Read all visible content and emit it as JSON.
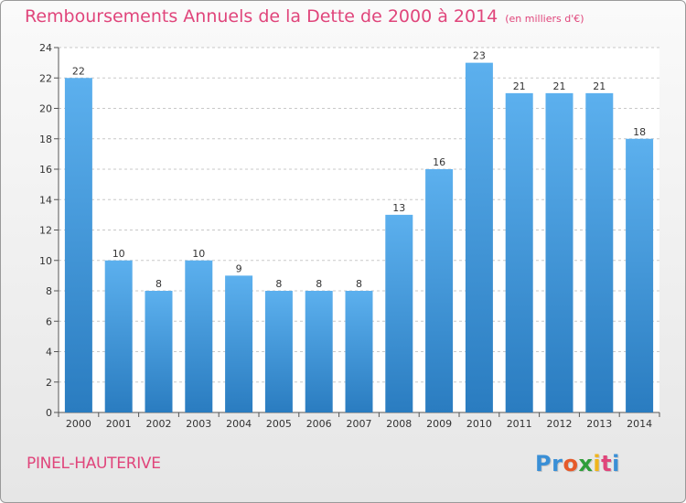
{
  "title": "Remboursements Annuels de la Dette de 2000 à 2014",
  "unit_note": "(en milliers d'€)",
  "commune": "PINEL-HAUTERIVE",
  "logo": {
    "letters": [
      "P",
      "r",
      "o",
      "x",
      "i",
      "t",
      "i"
    ],
    "colors": [
      "#3a8fd6",
      "#3a8fd6",
      "#e65a2a",
      "#2f9e3a",
      "#f0b41c",
      "#e0457b",
      "#3a8fd6"
    ]
  },
  "colors": {
    "bar_light": "#5cb0ee",
    "bar_dark": "#2a7cc0",
    "title": "#e0457b",
    "grid": "#c8c8c8"
  },
  "chart_data": {
    "type": "bar",
    "title": "Remboursements Annuels de la Dette de 2000 à 2014",
    "ylabel": "",
    "xlabel": "",
    "ylim": [
      0,
      24
    ],
    "yticks": [
      0,
      2,
      4,
      6,
      8,
      10,
      12,
      14,
      16,
      18,
      20,
      22,
      24
    ],
    "grid": true,
    "categories": [
      "2000",
      "2001",
      "2002",
      "2003",
      "2004",
      "2005",
      "2006",
      "2007",
      "2008",
      "2009",
      "2010",
      "2011",
      "2012",
      "2013",
      "2014"
    ],
    "values": [
      22,
      10,
      8,
      10,
      9,
      8,
      8,
      8,
      13,
      16,
      23,
      21,
      21,
      21,
      18
    ]
  }
}
